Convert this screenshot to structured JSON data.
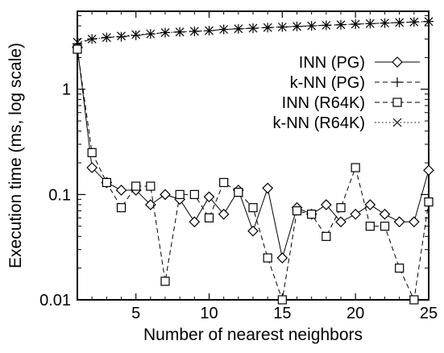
{
  "chart_data": {
    "type": "line",
    "title": "",
    "xlabel": "Number of nearest neighbors",
    "ylabel": "Execution time (ms, log scale)",
    "xlim": [
      1,
      25
    ],
    "ylim": [
      0.01,
      5.5
    ],
    "y_scale": "log",
    "grid": false,
    "legend_position": "top-right",
    "x_ticks": [
      5,
      10,
      15,
      20,
      25
    ],
    "x_tick_labels": [
      "5",
      "10",
      "15",
      "20",
      "25"
    ],
    "y_ticks": [
      0.01,
      0.1,
      1
    ],
    "y_tick_labels": [
      "0.01",
      "0.1",
      "1"
    ],
    "x": [
      1,
      2,
      3,
      4,
      5,
      6,
      7,
      8,
      9,
      10,
      11,
      12,
      13,
      14,
      15,
      16,
      17,
      18,
      19,
      20,
      21,
      22,
      23,
      24,
      25
    ],
    "series": [
      {
        "name": "INN (PG)",
        "marker": "diamond",
        "line": "solid",
        "values": [
          2.5,
          0.18,
          0.13,
          0.11,
          0.11,
          0.08,
          0.1,
          0.09,
          0.055,
          0.095,
          0.065,
          0.11,
          0.045,
          0.115,
          0.025,
          0.075,
          0.065,
          0.08,
          0.055,
          0.065,
          0.08,
          0.065,
          0.055,
          0.055,
          0.17
        ]
      },
      {
        "name": "k-NN (PG)",
        "marker": "plus",
        "line": "dashed",
        "values": [
          2.7,
          3.0,
          3.1,
          3.15,
          3.25,
          3.35,
          3.45,
          3.5,
          3.55,
          3.6,
          3.7,
          3.75,
          3.8,
          3.85,
          3.9,
          3.95,
          4.0,
          4.05,
          4.1,
          4.15,
          4.2,
          4.25,
          4.3,
          4.35,
          4.4
        ]
      },
      {
        "name": "INN (R64K)",
        "marker": "square",
        "line": "dashed",
        "values": [
          2.4,
          0.25,
          0.13,
          0.075,
          0.12,
          0.12,
          0.015,
          0.1,
          0.1,
          0.06,
          0.13,
          0.105,
          0.075,
          0.025,
          0.01,
          0.07,
          0.065,
          0.04,
          0.075,
          0.18,
          0.05,
          0.05,
          0.02,
          0.0075,
          0.085
        ]
      },
      {
        "name": "k-NN (R64K)",
        "marker": "cross",
        "line": "dotted",
        "values": [
          2.8,
          3.0,
          3.1,
          3.2,
          3.3,
          3.35,
          3.45,
          3.5,
          3.55,
          3.6,
          3.7,
          3.75,
          3.8,
          3.85,
          3.9,
          3.95,
          4.0,
          4.05,
          4.1,
          4.15,
          4.2,
          4.25,
          4.3,
          4.35,
          4.4
        ]
      }
    ]
  }
}
